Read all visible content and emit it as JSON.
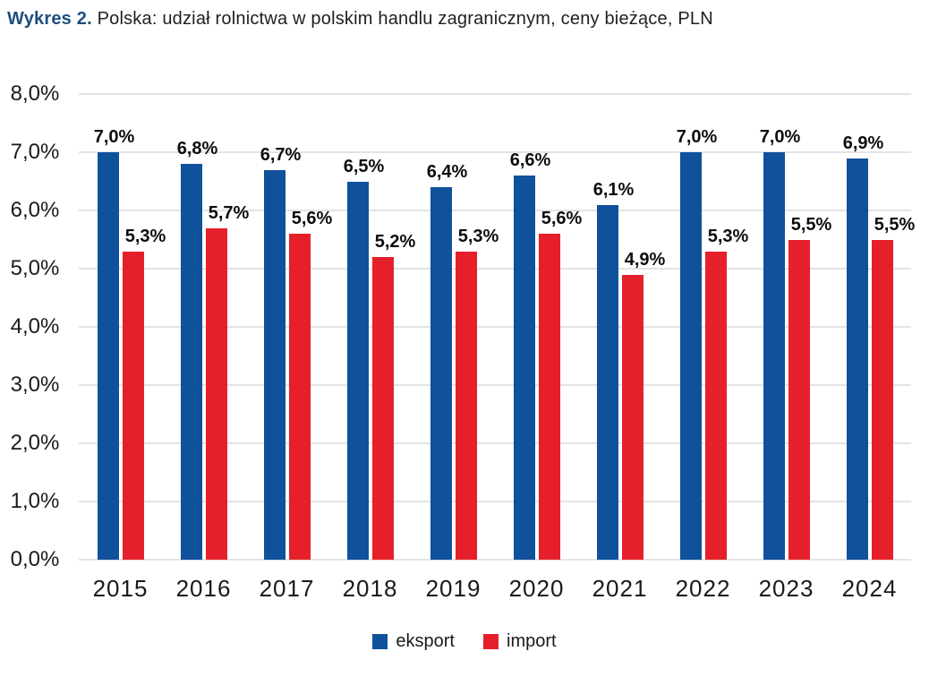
{
  "title": {
    "prefix": "Wykres 2.",
    "text": "Polska: udział rolnictwa w polskim handlu zagranicznym, ceny bieżące, PLN"
  },
  "colors": {
    "title_prefix": "#1d4e7e",
    "eksport": "#10519c",
    "import": "#e6202b",
    "gridline": "#e3e3e3",
    "axis_text": "#1a1a1a",
    "data_label": "#0d0d0d"
  },
  "chart_data": {
    "type": "bar",
    "title": "Polska: udział rolnictwa w polskim handlu zagranicznym, ceny bieżące, PLN",
    "categories": [
      "2015",
      "2016",
      "2017",
      "2018",
      "2019",
      "2020",
      "2021",
      "2022",
      "2023",
      "2024"
    ],
    "series": [
      {
        "name": "eksport",
        "color": "#10519c",
        "values": [
          7.0,
          6.8,
          6.7,
          6.5,
          6.4,
          6.6,
          6.1,
          7.0,
          7.0,
          6.9
        ],
        "labels": [
          "7,0%",
          "6,8%",
          "6,7%",
          "6,5%",
          "6,4%",
          "6,6%",
          "6,1%",
          "7,0%",
          "7,0%",
          "6,9%"
        ]
      },
      {
        "name": "import",
        "color": "#e6202b",
        "values": [
          5.3,
          5.7,
          5.6,
          5.2,
          5.3,
          5.6,
          4.9,
          5.3,
          5.5,
          5.5
        ],
        "labels": [
          "5,3%",
          "5,7%",
          "5,6%",
          "5,2%",
          "5,3%",
          "5,6%",
          "4,9%",
          "5,3%",
          "5,5%",
          "5,5%"
        ]
      }
    ],
    "xlabel": "",
    "ylabel": "",
    "ylim": [
      0,
      8
    ],
    "ytick_step": 1,
    "yticks": [
      "0,0%",
      "1,0%",
      "2,0%",
      "3,0%",
      "4,0%",
      "5,0%",
      "6,0%",
      "7,0%",
      "8,0%"
    ],
    "grid": true,
    "legend_position": "bottom"
  }
}
